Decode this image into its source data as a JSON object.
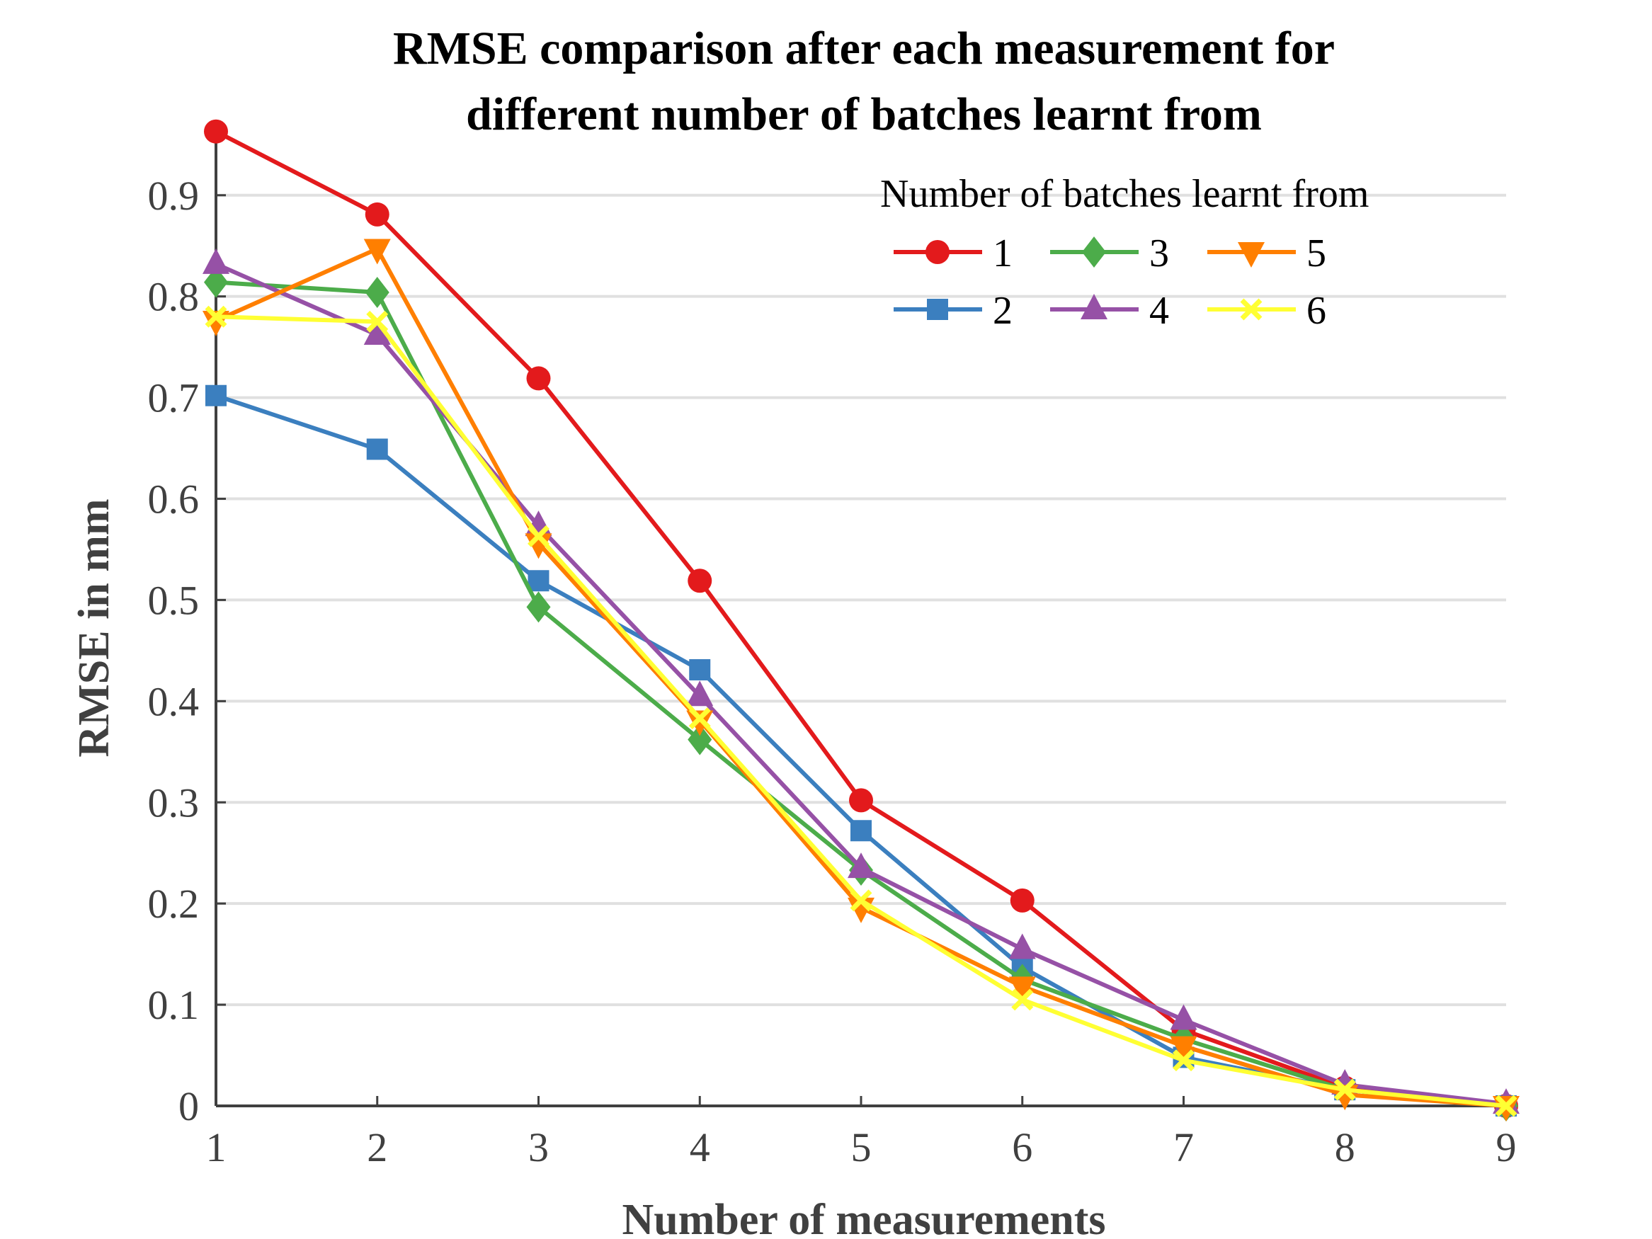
{
  "chart_data": {
    "type": "line",
    "title_lines": [
      "RMSE comparison after each measurement for",
      "different number of batches learnt from"
    ],
    "xlabel": "Number of measurements",
    "ylabel": "RMSE in mm",
    "x": [
      1,
      2,
      3,
      4,
      5,
      6,
      7,
      8,
      9
    ],
    "xlim": [
      1,
      9
    ],
    "ylim": [
      0,
      0.96
    ],
    "xticks": [
      1,
      2,
      3,
      4,
      5,
      6,
      7,
      8,
      9
    ],
    "yticks": [
      0,
      0.1,
      0.2,
      0.3,
      0.4,
      0.5,
      0.6,
      0.7,
      0.8,
      0.9
    ],
    "ytick_labels": [
      "0",
      "0.1",
      "0.2",
      "0.3",
      "0.4",
      "0.5",
      "0.6",
      "0.7",
      "0.8",
      "0.9"
    ],
    "grid": "horizontal",
    "legend": {
      "title": "Number of batches learnt from",
      "placement": "top-right",
      "columns": 3
    },
    "series": [
      {
        "name": "1",
        "color": "#e31a1c",
        "marker": "circle",
        "values": [
          0.963,
          0.881,
          0.719,
          0.519,
          0.302,
          0.203,
          0.075,
          0.018,
          0.0
        ]
      },
      {
        "name": "2",
        "color": "#3b7fbf",
        "marker": "square",
        "values": [
          0.702,
          0.649,
          0.519,
          0.431,
          0.272,
          0.137,
          0.048,
          0.016,
          0.0
        ]
      },
      {
        "name": "3",
        "color": "#4cac4a",
        "marker": "diamond",
        "values": [
          0.814,
          0.804,
          0.493,
          0.362,
          0.233,
          0.125,
          0.066,
          0.016,
          0.0
        ]
      },
      {
        "name": "4",
        "color": "#9651a6",
        "marker": "triangle-up",
        "values": [
          0.832,
          0.762,
          0.573,
          0.405,
          0.235,
          0.155,
          0.085,
          0.021,
          0.002
        ]
      },
      {
        "name": "5",
        "color": "#ff7f00",
        "marker": "triangle-down",
        "values": [
          0.776,
          0.847,
          0.556,
          0.381,
          0.196,
          0.118,
          0.059,
          0.011,
          0.0
        ]
      },
      {
        "name": "6",
        "color": "#ffff33",
        "marker": "x",
        "values": [
          0.78,
          0.775,
          0.563,
          0.383,
          0.203,
          0.105,
          0.045,
          0.016,
          0.0
        ]
      }
    ]
  }
}
